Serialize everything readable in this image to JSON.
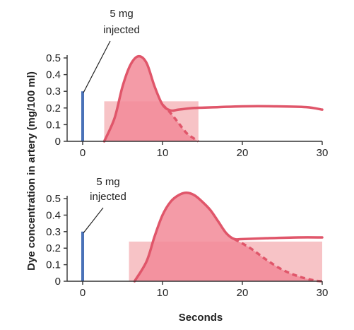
{
  "figure": {
    "ylabel": "Dye concentration in artery (mg/100 ml)",
    "xlabel": "Seconds"
  },
  "chart_data": [
    {
      "type": "line",
      "xlim": [
        0,
        30
      ],
      "ylim": [
        0,
        0.5
      ],
      "xticks": [
        0,
        10,
        20,
        30
      ],
      "yticks": [
        0,
        0.1,
        0.2,
        0.3,
        0.4,
        0.5
      ],
      "xtick_labels": [
        "0",
        "10",
        "20",
        "30"
      ],
      "ytick_labels": [
        "0",
        "0.1",
        "0.2",
        "0.3",
        "0.4",
        "0.5"
      ],
      "annotation": {
        "line1": "5 mg",
        "line2": "injected",
        "x": 0
      },
      "injection_bar": {
        "x": 0,
        "y": 0.3
      },
      "rectangle": {
        "x0": 2.7,
        "x1": 14.5,
        "height": 0.24
      },
      "series": [
        {
          "style": "solid",
          "points": [
            [
              2.7,
              0
            ],
            [
              4,
              0.14
            ],
            [
              5,
              0.33
            ],
            [
              6,
              0.46
            ],
            [
              7,
              0.51
            ],
            [
              8,
              0.47
            ],
            [
              9,
              0.33
            ],
            [
              10,
              0.22
            ],
            [
              11,
              0.185
            ],
            [
              12,
              0.19
            ],
            [
              14,
              0.2
            ],
            [
              17,
              0.205
            ],
            [
              20,
              0.21
            ],
            [
              24,
              0.21
            ],
            [
              28,
              0.205
            ],
            [
              30,
              0.19
            ]
          ]
        },
        {
          "style": "dashed",
          "points": [
            [
              10,
              0.22
            ],
            [
              11,
              0.17
            ],
            [
              12,
              0.11
            ],
            [
              13,
              0.05
            ],
            [
              14,
              0.015
            ],
            [
              14.5,
              0
            ]
          ]
        }
      ],
      "colors": {
        "curve": "#e0566a",
        "area": "#f28a98",
        "rectangle": "#f7c3c6",
        "bar": "#4a72b8"
      }
    },
    {
      "type": "line",
      "xlim": [
        0,
        30
      ],
      "ylim": [
        0,
        0.5
      ],
      "xticks": [
        0,
        10,
        20,
        30
      ],
      "yticks": [
        0,
        0.1,
        0.2,
        0.3,
        0.4,
        0.5
      ],
      "xtick_labels": [
        "0",
        "10",
        "20",
        "30"
      ],
      "ytick_labels": [
        "0",
        "0.1",
        "0.2",
        "0.3",
        "0.4",
        "0.5"
      ],
      "annotation": {
        "line1": "5 mg",
        "line2": "injected",
        "x": 0
      },
      "injection_bar": {
        "x": 0,
        "y": 0.3
      },
      "rectangle": {
        "x0": 5.8,
        "x1": 30,
        "height": 0.24
      },
      "series": [
        {
          "style": "solid",
          "points": [
            [
              6.5,
              0
            ],
            [
              8,
              0.12
            ],
            [
              9,
              0.27
            ],
            [
              10,
              0.4
            ],
            [
              11,
              0.48
            ],
            [
              12,
              0.52
            ],
            [
              13,
              0.535
            ],
            [
              14,
              0.52
            ],
            [
              15,
              0.48
            ],
            [
              16,
              0.43
            ],
            [
              17,
              0.36
            ],
            [
              18,
              0.29
            ],
            [
              19,
              0.255
            ],
            [
              20,
              0.255
            ],
            [
              23,
              0.26
            ],
            [
              27,
              0.265
            ],
            [
              30,
              0.265
            ]
          ]
        },
        {
          "style": "dashed",
          "points": [
            [
              19,
              0.255
            ],
            [
              21,
              0.2
            ],
            [
              23,
              0.13
            ],
            [
              25,
              0.07
            ],
            [
              27,
              0.03
            ],
            [
              29,
              0.005
            ],
            [
              30,
              0
            ]
          ]
        }
      ],
      "colors": {
        "curve": "#e0566a",
        "area": "#f28a98",
        "rectangle": "#f7c3c6",
        "bar": "#4a72b8"
      }
    }
  ]
}
